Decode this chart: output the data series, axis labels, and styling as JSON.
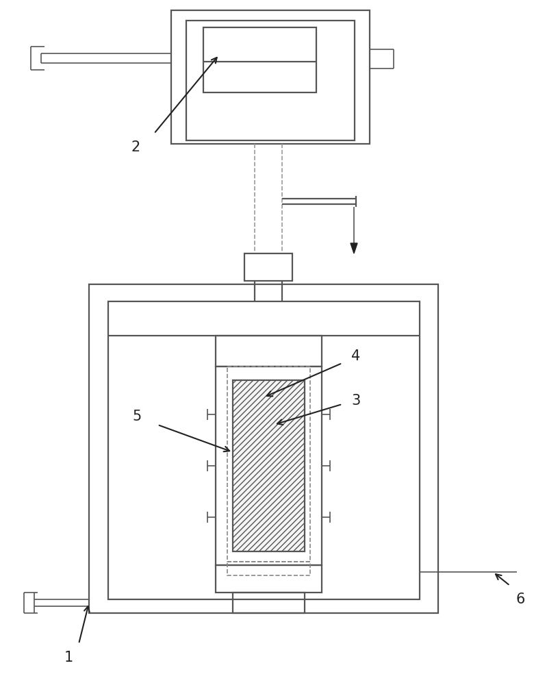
{
  "bg_color": "#ffffff",
  "lc": "#555555",
  "lc2": "#666666",
  "dash_color": "#999999",
  "arrow_color": "#222222",
  "label_color": "#222222",
  "lw": 1.6,
  "lw2": 1.2,
  "label_fontsize": 15,
  "fig_w": 7.99,
  "fig_h": 10.0,
  "dpi": 100
}
